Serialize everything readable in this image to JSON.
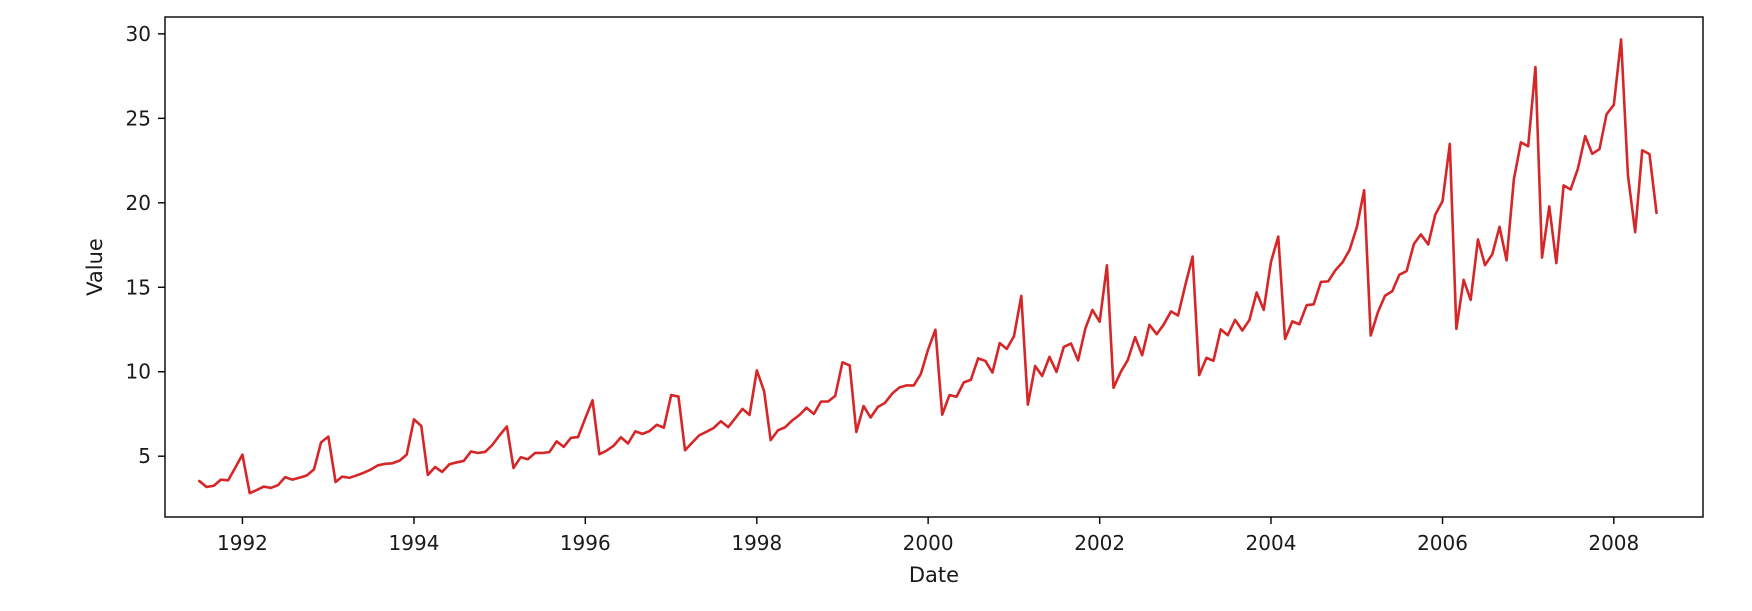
{
  "chart_data": {
    "type": "line",
    "title": "",
    "xlabel": "Date",
    "ylabel": "Value",
    "xlim": [
      "1991-02-05",
      "2009-01-15"
    ],
    "ylim": [
      1.4,
      31.0
    ],
    "x_ticks": [
      "1992-01-01",
      "1994-01-01",
      "1996-01-01",
      "1998-01-01",
      "2000-01-01",
      "2002-01-01",
      "2004-01-01",
      "2006-01-01",
      "2008-01-01"
    ],
    "x_tick_labels": [
      "1992",
      "1994",
      "1996",
      "1998",
      "2000",
      "2002",
      "2004",
      "2006",
      "2008"
    ],
    "y_ticks": [
      5,
      10,
      15,
      20,
      25,
      30
    ],
    "y_tick_labels": [
      "5",
      "10",
      "15",
      "20",
      "25",
      "30"
    ],
    "grid": false,
    "legend": "none",
    "series": [
      {
        "color": "#d62728",
        "x_start": "1991-07-01",
        "x_step": "1 month",
        "values": [
          3.53,
          3.18,
          3.25,
          3.61,
          3.57,
          4.31,
          5.09,
          2.81,
          2.99,
          3.2,
          3.12,
          3.29,
          3.76,
          3.61,
          3.73,
          3.86,
          4.22,
          5.82,
          6.16,
          3.47,
          3.79,
          3.72,
          3.86,
          4.02,
          4.21,
          4.46,
          4.55,
          4.58,
          4.74,
          5.09,
          7.18,
          6.79,
          3.89,
          4.36,
          4.07,
          4.52,
          4.63,
          4.72,
          5.28,
          5.19,
          5.26,
          5.67,
          6.24,
          6.76,
          4.3,
          4.94,
          4.82,
          5.19,
          5.19,
          5.24,
          5.88,
          5.55,
          6.09,
          6.13,
          7.25,
          8.31,
          5.12,
          5.33,
          5.62,
          6.12,
          5.75,
          6.47,
          6.32,
          6.49,
          6.86,
          6.69,
          8.62,
          8.53,
          5.35,
          5.81,
          6.24,
          6.45,
          6.67,
          7.07,
          6.72,
          7.25,
          7.8,
          7.44,
          10.08,
          8.85,
          5.95,
          6.53,
          6.71,
          7.12,
          7.43,
          7.87,
          7.5,
          8.23,
          8.24,
          8.57,
          10.56,
          10.37,
          6.43,
          7.97,
          7.29,
          7.92,
          8.15,
          8.71,
          9.07,
          9.19,
          9.19,
          9.87,
          11.32,
          12.49,
          7.46,
          8.62,
          8.52,
          9.37,
          9.52,
          10.79,
          10.64,
          9.95,
          11.69,
          11.35,
          12.11,
          14.49,
          8.05,
          10.34,
          9.75,
          10.88,
          9.99,
          11.47,
          11.67,
          10.67,
          12.56,
          13.66,
          12.96,
          16.3,
          9.05,
          9.99,
          10.7,
          12.05,
          10.97,
          12.78,
          12.22,
          12.8,
          13.57,
          13.33,
          15.13,
          16.82,
          9.8,
          10.82,
          10.65,
          12.51,
          12.16,
          13.07,
          12.44,
          13.06,
          14.69,
          13.66,
          16.5,
          18.0,
          11.94,
          12.98,
          12.81,
          13.94,
          13.99,
          15.32,
          15.35,
          16.0,
          16.48,
          17.21,
          18.57,
          20.74,
          12.14,
          13.54,
          14.5,
          14.77,
          15.74,
          15.96,
          17.56,
          18.13,
          17.53,
          19.3,
          20.09,
          23.49,
          12.54,
          15.44,
          14.25,
          17.83,
          16.31,
          16.95,
          18.58,
          16.59,
          21.39,
          23.58,
          23.35,
          28.04,
          16.76,
          19.79,
          16.43,
          21.03,
          20.79,
          22.03,
          23.95,
          22.9,
          23.18,
          25.24,
          25.8,
          29.67,
          21.65,
          18.26,
          23.11,
          22.88,
          19.4
        ]
      }
    ]
  }
}
